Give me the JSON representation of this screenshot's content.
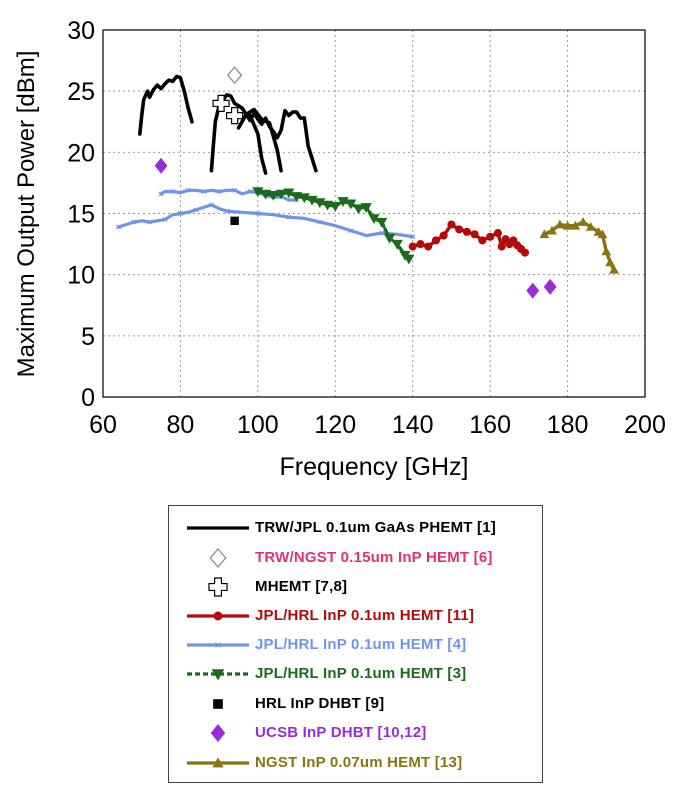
{
  "chart_data": {
    "type": "line",
    "title": "",
    "xlabel": "Frequency [GHz]",
    "ylabel": "Maximum Output Power [dBm]",
    "xlim": [
      60,
      200
    ],
    "ylim": [
      0,
      30
    ],
    "xticks": [
      60,
      80,
      100,
      120,
      140,
      160,
      180,
      200
    ],
    "yticks": [
      0,
      5,
      10,
      15,
      20,
      25,
      30
    ],
    "grid": true,
    "legend_position": "below",
    "series": [
      {
        "name": "TRW/JPL 0.1um GaAs PHEMT [1]",
        "color": "#000000",
        "marker": "none",
        "dash": "solid",
        "legend_color": "#000000",
        "segments": [
          [
            [
              69.5,
              21.5
            ],
            [
              70,
              23
            ],
            [
              70.5,
              24.3
            ],
            [
              71.5,
              25
            ],
            [
              72,
              24.5
            ],
            [
              73,
              25.1
            ],
            [
              74,
              25.5
            ],
            [
              75,
              25.2
            ],
            [
              76,
              25.6
            ],
            [
              77,
              25.9
            ],
            [
              78,
              25.8
            ],
            [
              79,
              26.2
            ],
            [
              80,
              26.1
            ],
            [
              81,
              25
            ],
            [
              82,
              23.6
            ],
            [
              83,
              22.5
            ]
          ],
          [
            [
              88,
              18.5
            ],
            [
              88.5,
              20.5
            ],
            [
              89,
              22.5
            ],
            [
              90,
              23.8
            ],
            [
              91,
              24.3
            ],
            [
              92,
              24.7
            ],
            [
              93,
              24.6
            ],
            [
              94,
              24
            ],
            [
              95,
              23.8
            ],
            [
              96,
              23.6
            ],
            [
              97,
              23.1
            ],
            [
              98,
              22.6
            ],
            [
              99,
              23.2
            ],
            [
              100,
              22.7
            ],
            [
              101,
              22.3
            ],
            [
              102,
              22.8
            ],
            [
              103,
              22.1
            ],
            [
              104,
              21.7
            ],
            [
              105,
              21.2
            ],
            [
              106,
              21.8
            ],
            [
              107,
              23.4
            ],
            [
              108,
              23
            ],
            [
              109,
              23.3
            ],
            [
              110,
              23.3
            ],
            [
              111,
              22.8
            ],
            [
              112,
              22.8
            ],
            [
              113,
              20.5
            ],
            [
              114,
              19.5
            ],
            [
              115,
              18.5
            ]
          ],
          [
            [
              95,
              22
            ],
            [
              97,
              23.1
            ],
            [
              99,
              23.5
            ],
            [
              101,
              22.7
            ],
            [
              103,
              22.4
            ],
            [
              105,
              20.2
            ],
            [
              106,
              18.5
            ]
          ],
          [
            [
              98,
              23
            ],
            [
              100,
              21.5
            ],
            [
              101,
              19.5
            ],
            [
              102,
              18.3
            ]
          ]
        ]
      },
      {
        "name": "TRW/NGST 0.15um InP HEMT [6]",
        "color": "#8c8c8c",
        "marker": "diamond-open",
        "dash": "none",
        "legend_color": "#e0336e",
        "points": [
          [
            94,
            26.3
          ]
        ]
      },
      {
        "name": "MHEMT [7,8]",
        "color": "#000000",
        "marker": "plus-open",
        "dash": "none",
        "legend_color": "#000000",
        "points": [
          [
            90.5,
            24
          ],
          [
            94,
            23
          ]
        ]
      },
      {
        "name": "JPL/HRL InP 0.1um HEMT [11]",
        "color": "#b40a0a",
        "marker": "circle",
        "dash": "solid",
        "legend_color": "#b40a0a",
        "points": [
          [
            140,
            12.3
          ],
          [
            142,
            12.5
          ],
          [
            144,
            12.3
          ],
          [
            146,
            12.8
          ],
          [
            148,
            13.2
          ],
          [
            150,
            14.1
          ],
          [
            152,
            13.7
          ],
          [
            154,
            13.5
          ],
          [
            156,
            13.3
          ],
          [
            158,
            12.8
          ],
          [
            160,
            13.1
          ],
          [
            162,
            13.4
          ],
          [
            163,
            12.3
          ],
          [
            164,
            12.9
          ],
          [
            165,
            12.5
          ],
          [
            166,
            12.8
          ],
          [
            167,
            12.4
          ],
          [
            168,
            12.1
          ],
          [
            169,
            11.8
          ]
        ]
      },
      {
        "name": "JPL/HRL InP 0.1um HEMT [4]",
        "color": "#6f94e8",
        "marker": "x-small",
        "dash": "solid",
        "legend_color": "#6f94e8",
        "segments": [
          [
            [
              64,
              13.9
            ],
            [
              66,
              14.1
            ],
            [
              68,
              14.3
            ],
            [
              70,
              14.4
            ],
            [
              72,
              14.3
            ],
            [
              74,
              14.4
            ],
            [
              76,
              14.5
            ],
            [
              78,
              14.9
            ],
            [
              80,
              15
            ],
            [
              82,
              15.1
            ],
            [
              84,
              15.3
            ],
            [
              86,
              15.5
            ],
            [
              88,
              15.7
            ],
            [
              90,
              15.4
            ],
            [
              92,
              15.2
            ],
            [
              96,
              15.1
            ],
            [
              100,
              15
            ],
            [
              104,
              14.9
            ],
            [
              108,
              14.7
            ],
            [
              112,
              14.6
            ],
            [
              116,
              14.3
            ],
            [
              120,
              14.0
            ],
            [
              124,
              13.6
            ],
            [
              128,
              13.2
            ],
            [
              132,
              13.4
            ],
            [
              136,
              13.3
            ],
            [
              140,
              13.1
            ]
          ],
          [
            [
              75,
              16.6
            ],
            [
              76,
              16.8
            ],
            [
              78,
              16.8
            ],
            [
              80,
              16.7
            ],
            [
              82,
              16.9
            ],
            [
              84,
              16.9
            ],
            [
              86,
              16.8
            ],
            [
              88,
              16.9
            ],
            [
              90,
              16.8
            ],
            [
              92,
              16.9
            ],
            [
              94,
              16.9
            ],
            [
              96,
              16.6
            ],
            [
              98,
              16.8
            ],
            [
              100,
              16.7
            ],
            [
              102,
              16.5
            ],
            [
              104,
              16.3
            ],
            [
              106,
              16.4
            ],
            [
              108,
              16.1
            ],
            [
              110,
              16.1
            ]
          ]
        ]
      },
      {
        "name": "JPL/HRL InP 0.1um HEMT [3]",
        "color": "#1b6b1b",
        "marker": "triangle-down",
        "dash": "dashed",
        "legend_color": "#1b6b1b",
        "points": [
          [
            100,
            16.8
          ],
          [
            102,
            16.6
          ],
          [
            104,
            16.5
          ],
          [
            106,
            16.6
          ],
          [
            108,
            16.7
          ],
          [
            110,
            16.4
          ],
          [
            112,
            16.3
          ],
          [
            114,
            16.1
          ],
          [
            116,
            15.9
          ],
          [
            118,
            15.7
          ],
          [
            120,
            15.6
          ],
          [
            122,
            16.0
          ],
          [
            124,
            15.8
          ],
          [
            126,
            15.4
          ],
          [
            128,
            15.5
          ],
          [
            130,
            14.6
          ],
          [
            132,
            14.3
          ],
          [
            134,
            13.0
          ],
          [
            136,
            12.5
          ],
          [
            138,
            11.6
          ],
          [
            139,
            11.3
          ]
        ]
      },
      {
        "name": "HRL InP DHBT [9]",
        "color": "#000000",
        "marker": "square",
        "dash": "none",
        "legend_color": "#000000",
        "points": [
          [
            94,
            14.4
          ]
        ]
      },
      {
        "name": "UCSB InP DHBT [10,12]",
        "color": "#9a2bd9",
        "marker": "diamond",
        "dash": "none",
        "legend_color": "#9a2bd9",
        "points": [
          [
            75,
            18.9
          ],
          [
            171,
            8.7
          ],
          [
            175.5,
            9
          ]
        ]
      },
      {
        "name": "NGST InP 0.07um HEMT [13]",
        "color": "#8a7412",
        "marker": "triangle-up",
        "dash": "solid",
        "legend_color": "#8a7412",
        "points": [
          [
            174,
            13.3
          ],
          [
            176,
            13.6
          ],
          [
            178,
            14.1
          ],
          [
            180,
            14.0
          ],
          [
            182,
            14.0
          ],
          [
            184,
            14.3
          ],
          [
            186,
            13.9
          ],
          [
            188,
            13.5
          ],
          [
            189,
            13.3
          ],
          [
            190,
            11.9
          ],
          [
            191,
            11.0
          ],
          [
            192,
            10.4
          ]
        ]
      }
    ]
  }
}
